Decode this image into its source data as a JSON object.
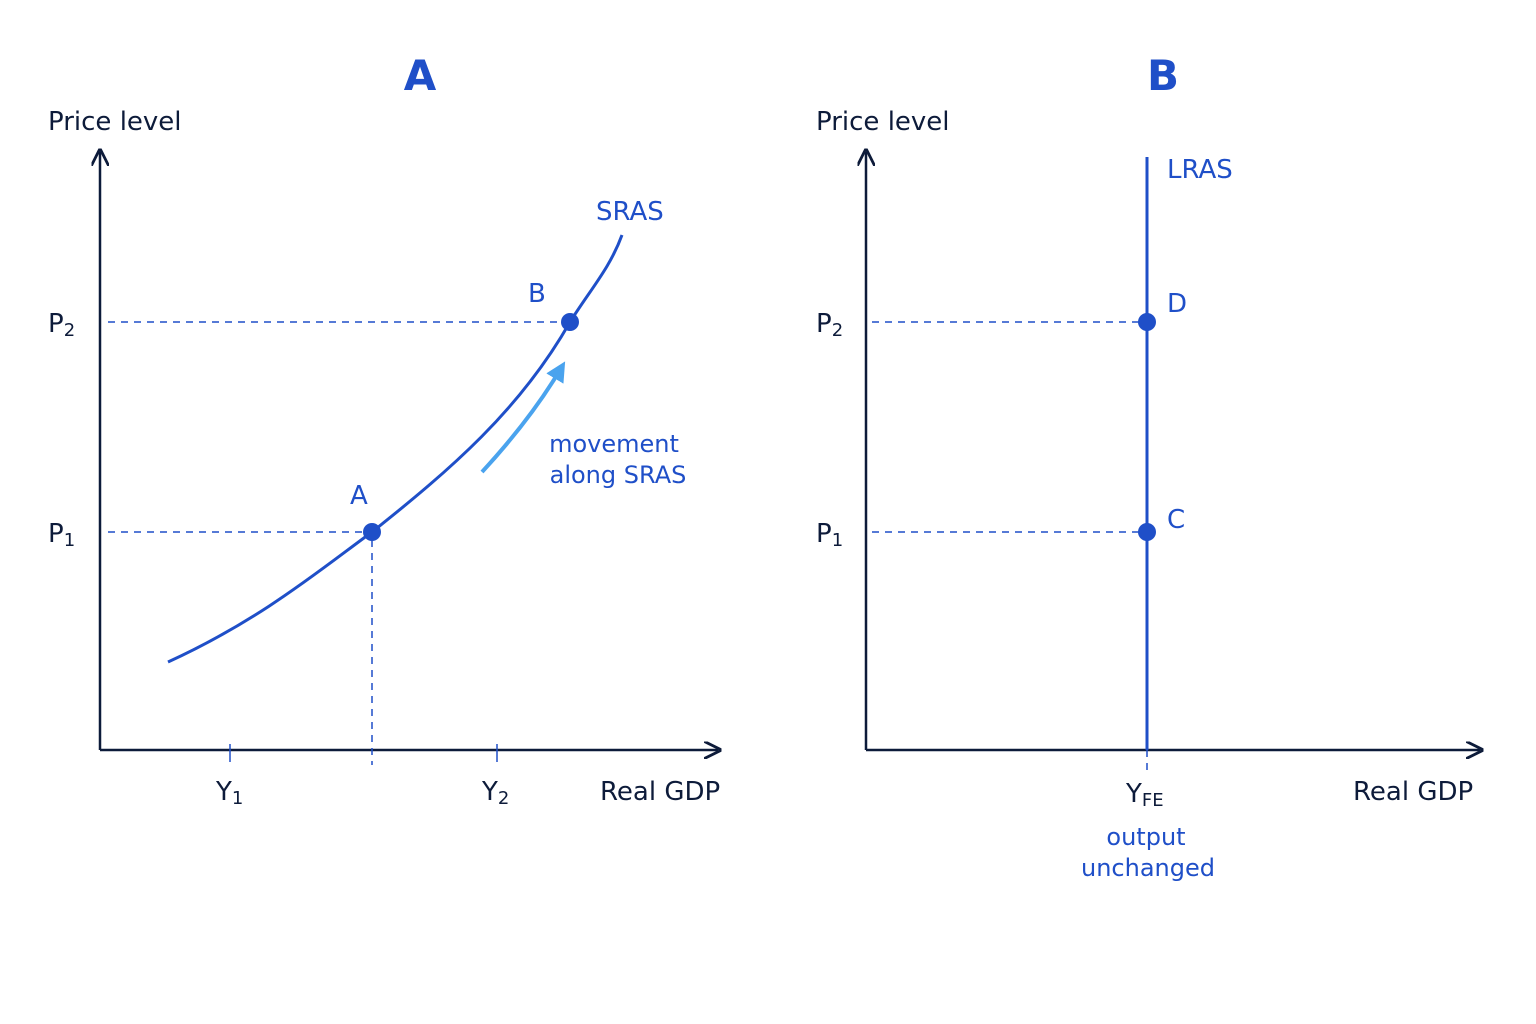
{
  "panels": [
    {
      "title": "A",
      "y_axis_label": "Price level",
      "x_axis_label": "Real GDP",
      "y_ticks": [
        {
          "base": "P",
          "sub": "2"
        },
        {
          "base": "P",
          "sub": "1"
        }
      ],
      "x_ticks": [
        {
          "base": "Y",
          "sub": "1"
        },
        {
          "base": "Y",
          "sub": "2"
        }
      ],
      "curve_label": "SRAS",
      "points": [
        {
          "label": "A"
        },
        {
          "label": "B"
        }
      ],
      "annotation": [
        "movement",
        "along SRAS"
      ]
    },
    {
      "title": "B",
      "y_axis_label": "Price level",
      "x_axis_label": "Real GDP",
      "y_ticks": [
        {
          "base": "P",
          "sub": "2"
        },
        {
          "base": "P",
          "sub": "1"
        }
      ],
      "x_ticks": [
        {
          "base": "Y",
          "sub": "FE"
        }
      ],
      "curve_label": "LRAS",
      "points": [
        {
          "label": "D"
        },
        {
          "label": "C"
        }
      ],
      "annotation": [
        "output",
        "unchanged"
      ]
    }
  ]
}
